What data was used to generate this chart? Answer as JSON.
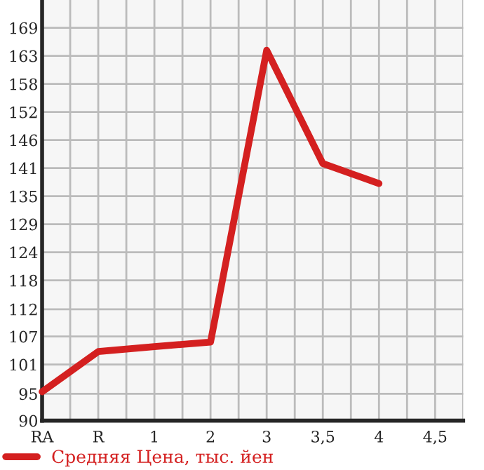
{
  "chart_data": {
    "type": "line",
    "categories": [
      "RA",
      "R",
      "1",
      "2",
      "3",
      "3,5",
      "4",
      "4,5"
    ],
    "series": [
      {
        "name": "Средняя Цена, тыс. йен",
        "color": "#d42020",
        "values": [
          95.8,
          103.9,
          104.9,
          105.8,
          164.5,
          141.7,
          137.7,
          null
        ]
      }
    ],
    "ylim": [
      90,
      174.6
    ],
    "yticks": [
      90,
      {
        "value": 95.4,
        "label": "95"
      },
      {
        "value": 101.29,
        "label": "101"
      },
      {
        "value": 106.93,
        "label": "107"
      },
      {
        "value": 112.4,
        "label": "112"
      },
      {
        "value": 118.21,
        "label": "118"
      },
      {
        "value": 123.86,
        "label": "124"
      },
      {
        "value": 129.5,
        "label": "129"
      },
      {
        "value": 135.14,
        "label": "135"
      },
      {
        "value": 140.79,
        "label": "141"
      },
      {
        "value": 146.43,
        "label": "146"
      },
      {
        "value": 152.07,
        "label": "152"
      },
      {
        "value": 157.71,
        "label": "158"
      },
      {
        "value": 163.36,
        "label": "163"
      },
      169
    ],
    "grid": true,
    "legend": "bottom left",
    "marker": "none",
    "line_style": "solid"
  }
}
